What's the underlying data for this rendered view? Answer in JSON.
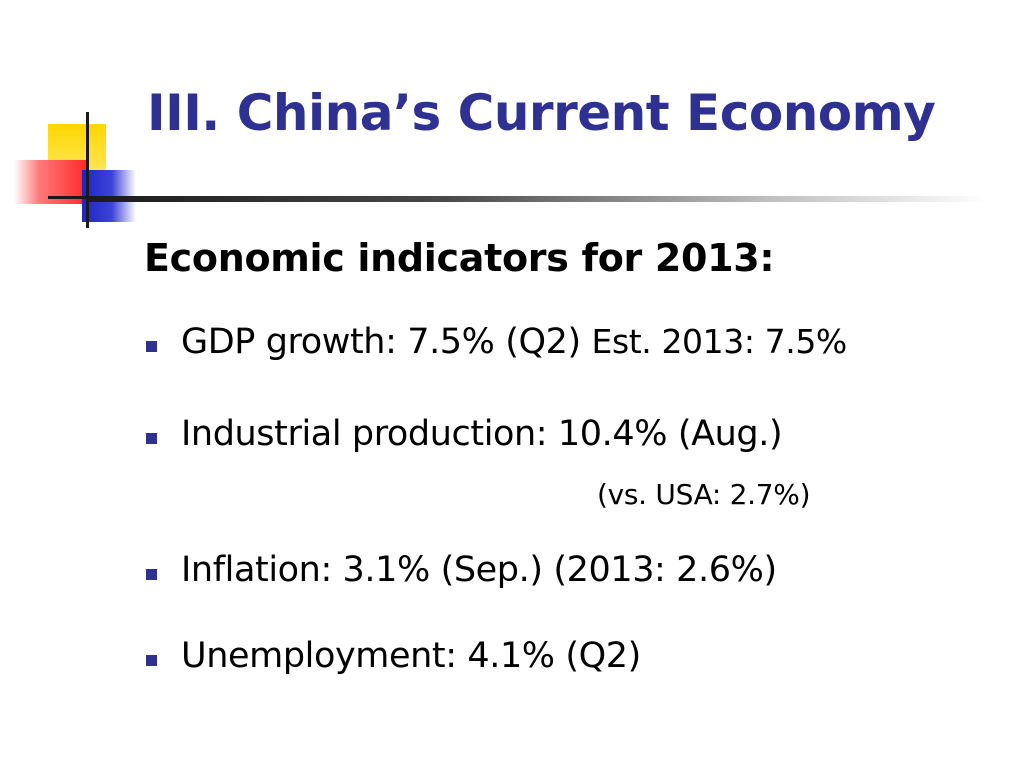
{
  "slide": {
    "title": "III. China’s Current Economy",
    "subtitle": "Economic indicators for 2013:",
    "bullets": [
      {
        "main": "GDP growth: 7.5% (Q2) ",
        "extra": "Est. 2013: 7.5%"
      },
      {
        "main": "Industrial production: 10.4% (Aug.)",
        "note": "(vs. USA: 2.7%)"
      },
      {
        "main": "Inflation: 3.1% (Sep.) (2013: 2.6%)"
      },
      {
        "main": "Unemployment: 4.1% (Q2)"
      }
    ]
  },
  "colors": {
    "title": "#2e3192",
    "bullet": "#2e3192",
    "deco_yellow": "#ffd600",
    "deco_red": "#ff2a2a",
    "deco_blue": "#1f24c8"
  }
}
